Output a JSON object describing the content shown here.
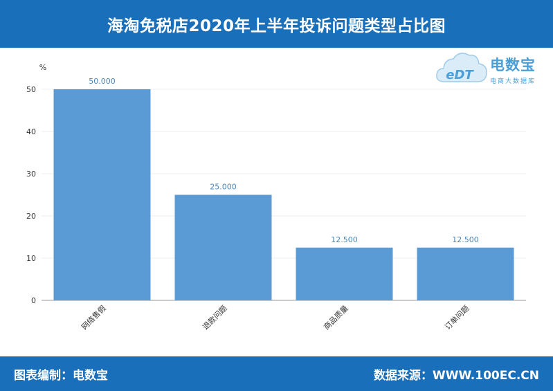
{
  "header": {
    "title": "海淘免税店2020年上半年投诉问题类型占比图"
  },
  "footer": {
    "left": "图表编制：电数宝",
    "right": "数据来源：WWW.100EC.CN"
  },
  "logo": {
    "name": "电数宝",
    "sub": "电商大数据库",
    "mark": "eDT"
  },
  "colors": {
    "bar": "#5b9bd5",
    "header": "#1a6fba",
    "label": "#4a86b8"
  },
  "chart_data": {
    "type": "bar",
    "title": "海淘免税店2020年上半年投诉问题类型占比图",
    "ylabel": "%",
    "xlabel": "",
    "categories": [
      "网络售假",
      "退款问题",
      "商品质量",
      "订单问题"
    ],
    "values": [
      50,
      25,
      12.5,
      12.5
    ],
    "data_labels": [
      "50.000",
      "25.000",
      "12.500",
      "12.500"
    ],
    "yticks": [
      0,
      10,
      20,
      30,
      40,
      50
    ],
    "ylim": [
      0,
      50
    ],
    "grid": true,
    "legend": "none"
  }
}
